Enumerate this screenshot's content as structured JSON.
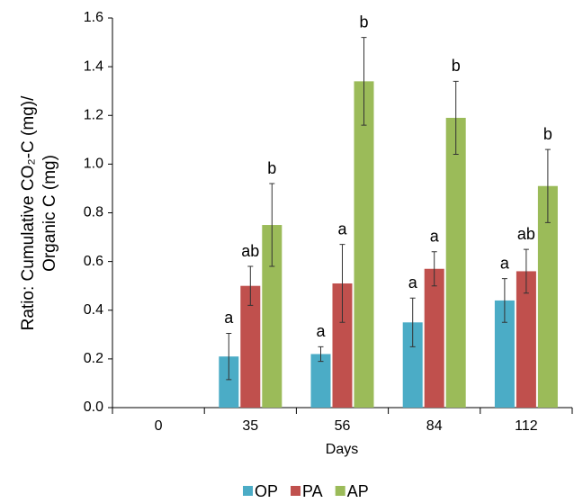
{
  "chart_data": {
    "type": "bar",
    "ylabel": [
      "Ratio: Cumulative CO₂-C (mg)/",
      "Organic C (mg)"
    ],
    "xlabel": "Days",
    "categories": [
      "0",
      "35",
      "56",
      "84",
      "112"
    ],
    "series": [
      {
        "name": "OP",
        "color": "#4bacc6",
        "values": [
          0,
          0.21,
          0.22,
          0.35,
          0.44
        ],
        "errors": [
          0,
          0.095,
          0.03,
          0.1,
          0.09
        ],
        "letters": [
          null,
          "a",
          "a",
          "a",
          "a"
        ]
      },
      {
        "name": "PA",
        "color": "#c0504d",
        "values": [
          0,
          0.5,
          0.51,
          0.57,
          0.56
        ],
        "errors": [
          0,
          0.08,
          0.16,
          0.07,
          0.09
        ],
        "letters": [
          null,
          "ab",
          "a",
          "a",
          "ab"
        ]
      },
      {
        "name": "AP",
        "color": "#9bbb59",
        "values": [
          0,
          0.75,
          1.34,
          1.19,
          0.91
        ],
        "errors": [
          0,
          0.17,
          0.18,
          0.15,
          0.15
        ],
        "letters": [
          null,
          "b",
          "b",
          "b",
          "b"
        ]
      }
    ],
    "ylim": [
      0,
      1.6
    ],
    "yticks": [
      {
        "value": 0,
        "label": "0.0"
      },
      {
        "value": 0.2,
        "label": "0.2"
      },
      {
        "value": 0.4,
        "label": "0.4"
      },
      {
        "value": 0.6,
        "label": "0.6"
      },
      {
        "value": 0.8,
        "label": "0.8"
      },
      {
        "value": 1,
        "label": "1.0"
      },
      {
        "value": 1.2,
        "label": "1.2"
      },
      {
        "value": 1.4,
        "label": "1.4"
      },
      {
        "value": 1.6,
        "label": "1.6"
      }
    ],
    "legend": "bottom"
  }
}
